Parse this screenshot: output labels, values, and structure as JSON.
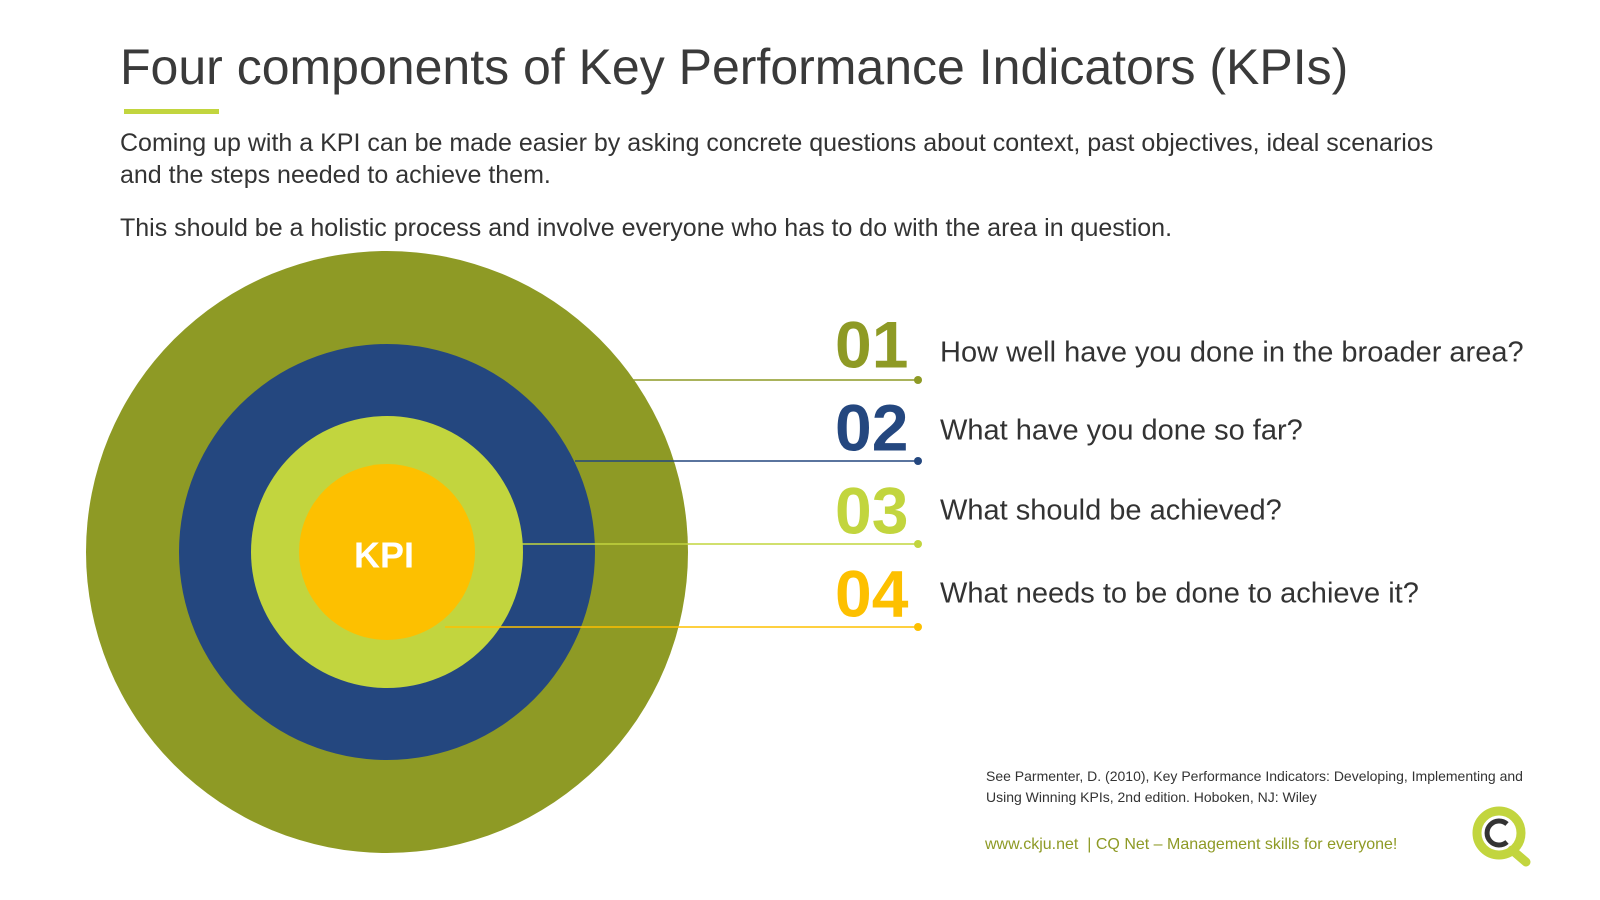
{
  "header": {
    "title": "Four components of Key Performance Indicators (KPIs)",
    "paragraphs": [
      "Coming up with a KPI can be made easier by asking concrete questions about context, past objectives, ideal scenarios and the steps needed to achieve them.",
      "This should be a holistic process and involve everyone who has to do with the area in question."
    ]
  },
  "diagram": {
    "center_label": "KPI",
    "items": [
      {
        "number": "01",
        "text": "How well have you done in the broader area?"
      },
      {
        "number": "02",
        "text": "What have you done so far?"
      },
      {
        "number": "03",
        "text": "What should be achieved?"
      },
      {
        "number": "04",
        "text": "What needs to be done to achieve it?"
      }
    ]
  },
  "citation": "See Parmenter, D. (2010), Key Performance Indicators: Developing, Implementing and Using Winning KPIs, 2nd edition. Hoboken, NJ: Wiley",
  "footer": {
    "url": "www.ckju.net",
    "tagline": "| CQ Net – Management skills for everyone!"
  }
}
